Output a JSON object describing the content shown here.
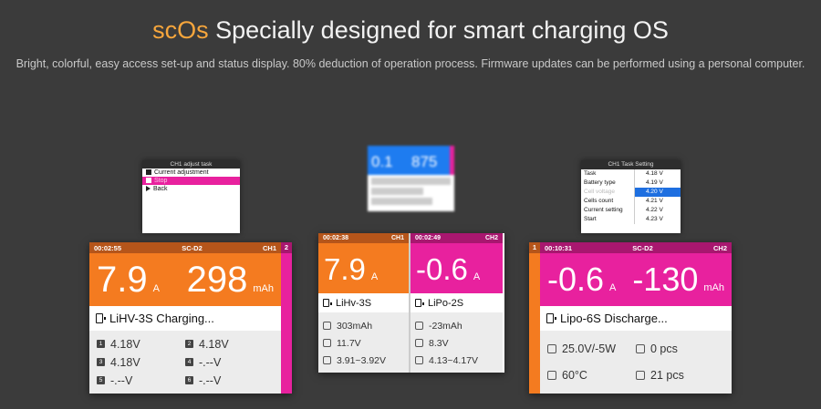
{
  "header": {
    "brand": "scOs",
    "title": " Specially designed for smart charging OS",
    "subtitle": "Bright, colorful, easy access set-up and status display. 80% deduction of operation process. Firmware updates can be performed using a personal computer."
  },
  "adjust_popup": {
    "title": "CH1 adjust task",
    "items": [
      "Current adjustment",
      "Stop",
      "Back"
    ]
  },
  "blurred_popup": {
    "value_left": "0.1",
    "value_right": "875"
  },
  "task_setting": {
    "title": "CH1 Task Setting",
    "rows": [
      {
        "label": "Task",
        "value": "4.18 V"
      },
      {
        "label": "Battery type",
        "value": "4.19 V"
      },
      {
        "label": "Cell voltage",
        "value": "4.20 V"
      },
      {
        "label": "Cells count",
        "value": "4.21 V"
      },
      {
        "label": "Current setting",
        "value": "4.22 V"
      },
      {
        "label": "Start",
        "value": "4.23 V"
      }
    ]
  },
  "screen1": {
    "time": "00:02:55",
    "mode": "SC-D2",
    "channel": "CH1",
    "side_label": "2",
    "current": "7.9",
    "current_unit": "A",
    "capacity": "298",
    "capacity_unit": "mAh",
    "status": "LiHV-3S Charging...",
    "cells": [
      {
        "idx": "1",
        "v": "4.18V"
      },
      {
        "idx": "2",
        "v": "4.18V"
      },
      {
        "idx": "3",
        "v": "4.18V"
      },
      {
        "idx": "4",
        "v": "-.--V"
      },
      {
        "idx": "5",
        "v": "-.--V"
      },
      {
        "idx": "6",
        "v": "-.--V"
      }
    ],
    "colors": {
      "accent": "#f47b20",
      "header": "#b5551a"
    }
  },
  "screen2": {
    "left": {
      "time": "00:02:38",
      "channel": "CH1",
      "current": "7.9",
      "unit": "A",
      "battery": "LiHv-3S",
      "capacity": "303mAh",
      "voltage": "11.7V",
      "range": "3.91~3.92V"
    },
    "right": {
      "time": "00:02:49",
      "channel": "CH2",
      "current": "-0.6",
      "unit": "A",
      "battery": "LiPo-2S",
      "capacity": "-23mAh",
      "voltage": "8.3V",
      "range": "4.13~4.17V"
    },
    "colors": {
      "orange": "#f47b20",
      "magenta": "#e8219e"
    }
  },
  "screen3": {
    "side_label": "1",
    "time": "00:10:31",
    "mode": "SC-D2",
    "channel": "CH2",
    "current": "-0.6",
    "current_unit": "A",
    "capacity": "-130",
    "capacity_unit": "mAh",
    "status": "Lipo-6S Discharge...",
    "info": [
      {
        "label": "25.0V/-5W"
      },
      {
        "label": "0 pcs"
      },
      {
        "label": "60°C"
      },
      {
        "label": "21 pcs"
      }
    ],
    "colors": {
      "accent": "#e8219e",
      "header": "#a8176f"
    }
  }
}
